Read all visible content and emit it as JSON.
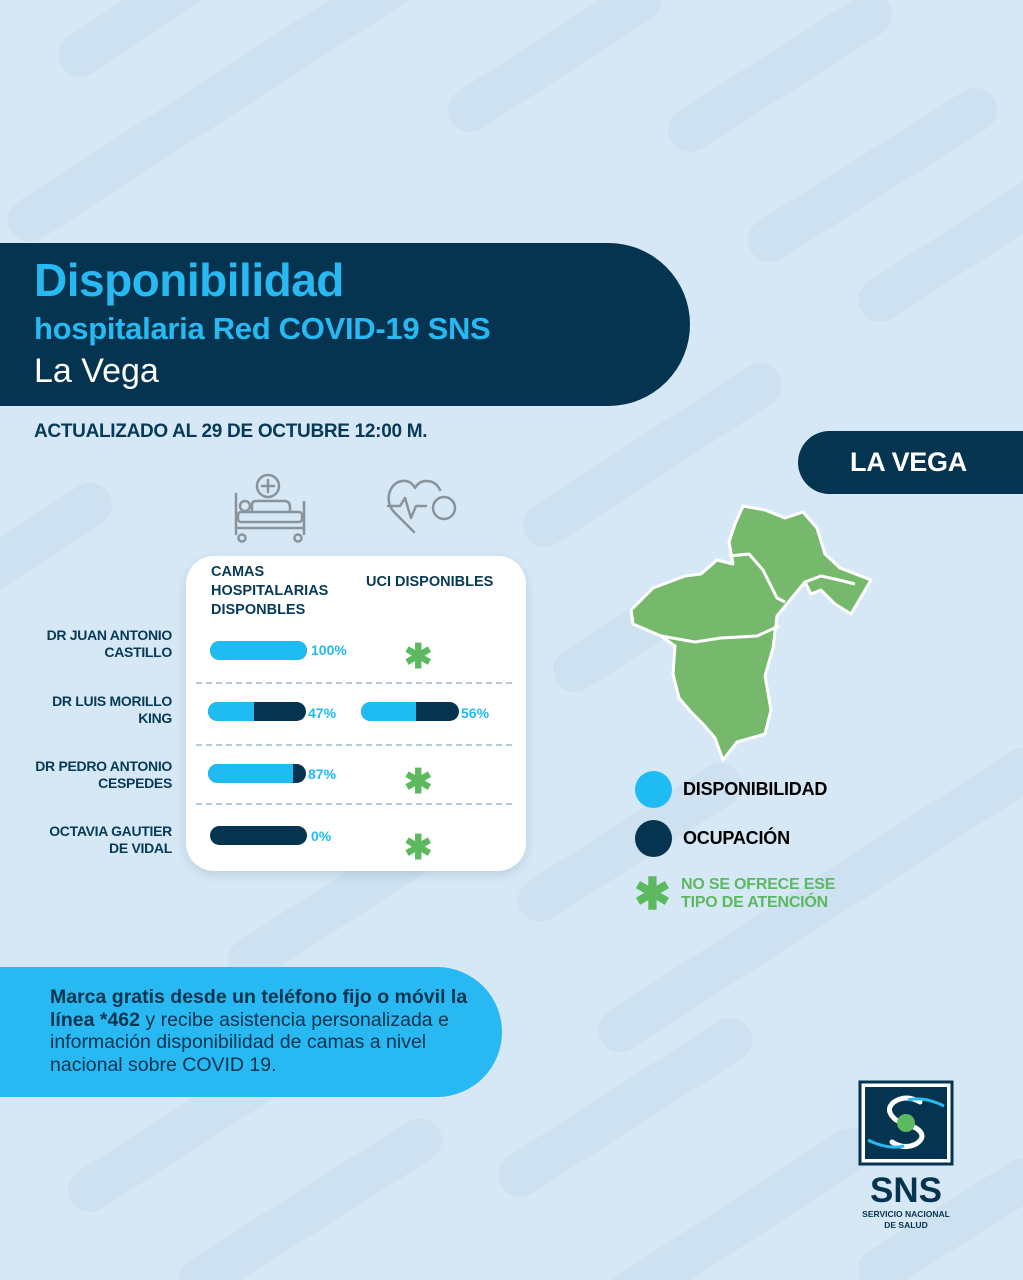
{
  "header": {
    "title_line1": "Disponibilidad",
    "title_line2": "hospitalaria Red COVID-19 SNS",
    "title_line3": "La Vega"
  },
  "updated": "ACTUALIZADO AL 29 DE OCTUBRE 12:00 M.",
  "region": "LA VEGA",
  "columns": {
    "beds": [
      "CAMAS",
      "HOSPITALARIAS",
      "DISPONBLES"
    ],
    "icu": "UCI DISPONIBLES"
  },
  "hospitals": [
    {
      "name_line1": "DR JUAN ANTONIO",
      "name_line2": "CASTILLO",
      "beds_available": 1.0,
      "beds_pct": "100%",
      "icu_available": null,
      "icu_pct": ""
    },
    {
      "name_line1": "DR LUIS MORILLO",
      "name_line2": "KING",
      "beds_available": 0.47,
      "beds_pct": "47%",
      "icu_available": 0.56,
      "icu_pct": "56%"
    },
    {
      "name_line1": "DR PEDRO ANTONIO",
      "name_line2": "CESPEDES",
      "beds_available": 0.87,
      "beds_pct": "87%",
      "icu_available": null,
      "icu_pct": ""
    },
    {
      "name_line1": "OCTAVIA GAUTIER",
      "name_line2": "DE VIDAL",
      "beds_available": 0.0,
      "beds_pct": "0%",
      "icu_available": null,
      "icu_pct": ""
    }
  ],
  "legend": {
    "available": "DISPONIBILIDAD",
    "occupied": "OCUPACIÓN",
    "not_offered_line1": "NO SE OFRECE ESE",
    "not_offered_line2": "TIPO DE ATENCIÓN",
    "asterisk": "✱"
  },
  "cta": {
    "bold": "Marca gratis desde un teléfono fijo o móvil la línea *462",
    "normal": " y recibe asistencia personalizada e información disponibilidad de camas a nivel nacional sobre COVID 19."
  },
  "logo": {
    "name": "SNS",
    "sub_line1": "SERVICIO NACIONAL",
    "sub_line2": "DE SALUD"
  },
  "colors": {
    "available": "#1fbcf4",
    "occupied": "#04344f",
    "not_offered": "#5cb960",
    "map": "#76b96c"
  }
}
